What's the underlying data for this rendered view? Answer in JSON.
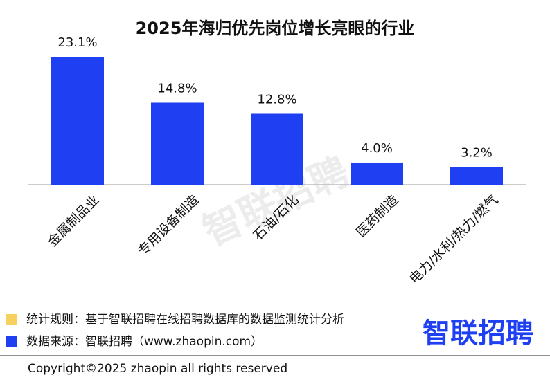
{
  "chart_data": {
    "type": "bar",
    "title": "2025年海归优先岗位增长亮眼的行业",
    "categories": [
      "金属制品业",
      "专用设备制造",
      "石油/石化",
      "医药制造",
      "电力/水利/热力/燃气"
    ],
    "values": [
      23.1,
      14.8,
      12.8,
      4.0,
      3.2
    ],
    "value_labels": [
      "23.1%",
      "14.8%",
      "12.8%",
      "4.0%",
      "3.2%"
    ],
    "color": "#1f3ff2"
  },
  "watermark": "智联招聘",
  "notes": [
    {
      "text": "统计规则：基于智联招聘在线招聘数据库的数据监测统计分析",
      "color": "#f7d160"
    },
    {
      "text": "数据来源：智联招聘（www.zhaopin.com）",
      "color": "#1f3ff2"
    }
  ],
  "logo": "智联招聘",
  "copyright": "Copyright©2025 zhaopin all rights reserved"
}
